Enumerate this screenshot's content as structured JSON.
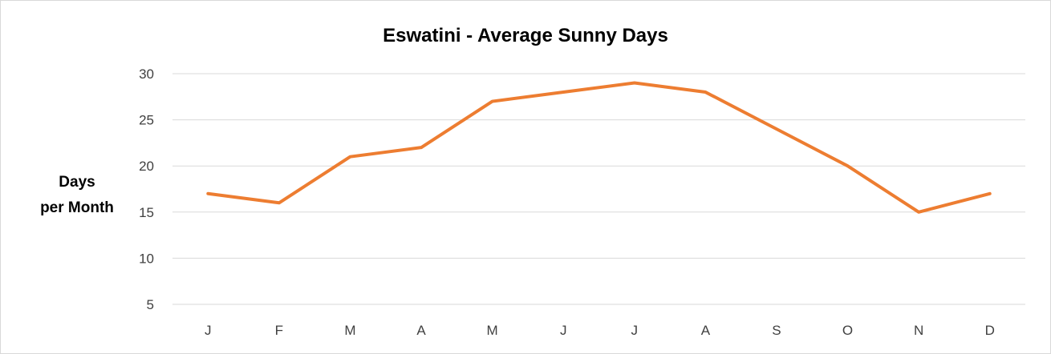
{
  "chart_data": {
    "type": "line",
    "title": "Eswatini - Average Sunny Days",
    "ylabel_lines": [
      "Days",
      "per Month"
    ],
    "xlabel": "",
    "categories": [
      "J",
      "F",
      "M",
      "A",
      "M",
      "J",
      "J",
      "A",
      "S",
      "O",
      "N",
      "D"
    ],
    "series": [
      {
        "values": [
          17,
          16,
          21,
          22,
          27,
          28,
          29,
          28,
          24,
          20,
          15,
          17
        ],
        "color": "#ed7d31"
      }
    ],
    "yticks": [
      5,
      10,
      15,
      20,
      25,
      30
    ],
    "ylim": [
      5,
      30
    ],
    "grid": true,
    "legend": "none"
  }
}
